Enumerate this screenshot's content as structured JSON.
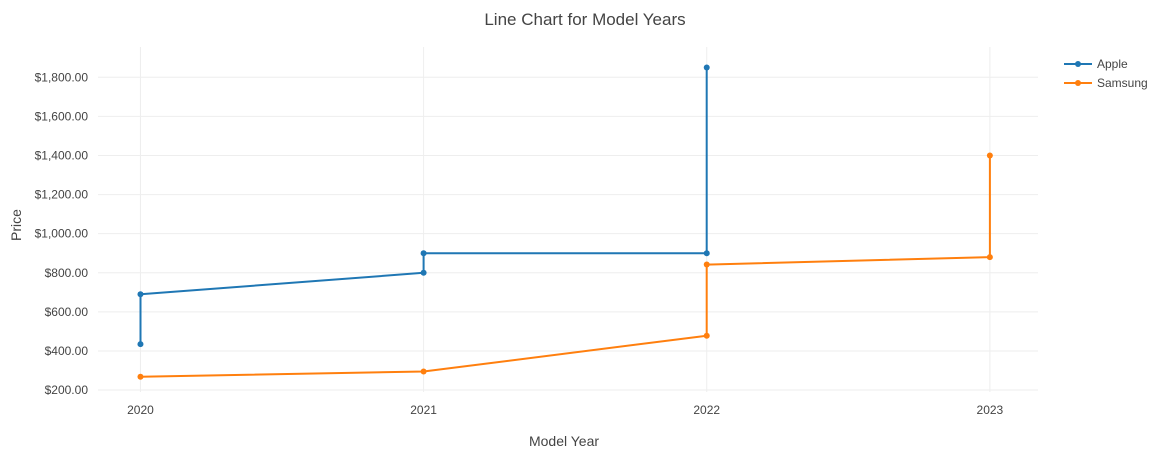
{
  "chart_data": {
    "type": "line",
    "title": "Line Chart for Model Years",
    "xlabel": "Model Year",
    "ylabel": "Price",
    "xlim": [
      2019.85,
      2023.17
    ],
    "ylim": [
      190,
      1955
    ],
    "grid": true,
    "legend_position": "top-right",
    "x_ticks": [
      {
        "value": 2020,
        "label": "2020"
      },
      {
        "value": 2021,
        "label": "2021"
      },
      {
        "value": 2022,
        "label": "2022"
      },
      {
        "value": 2023,
        "label": "2023"
      }
    ],
    "y_ticks": [
      {
        "value": 200,
        "label": "$200.00"
      },
      {
        "value": 400,
        "label": "$400.00"
      },
      {
        "value": 600,
        "label": "$600.00"
      },
      {
        "value": 800,
        "label": "$800.00"
      },
      {
        "value": 1000,
        "label": "$1,000.00"
      },
      {
        "value": 1200,
        "label": "$1,200.00"
      },
      {
        "value": 1400,
        "label": "$1,400.00"
      },
      {
        "value": 1600,
        "label": "$1,600.00"
      },
      {
        "value": 1800,
        "label": "$1,800.00"
      }
    ],
    "series": [
      {
        "name": "Apple",
        "color": "#1f77b4",
        "points": [
          {
            "x": 2020,
            "y": 435
          },
          {
            "x": 2020,
            "y": 690
          },
          {
            "x": 2021,
            "y": 800
          },
          {
            "x": 2021,
            "y": 900
          },
          {
            "x": 2022,
            "y": 900
          },
          {
            "x": 2022,
            "y": 1850
          }
        ]
      },
      {
        "name": "Samsung",
        "color": "#ff7f0e",
        "points": [
          {
            "x": 2020,
            "y": 268
          },
          {
            "x": 2021,
            "y": 295
          },
          {
            "x": 2022,
            "y": 478
          },
          {
            "x": 2022,
            "y": 842
          },
          {
            "x": 2023,
            "y": 880
          },
          {
            "x": 2023,
            "y": 1400
          }
        ]
      }
    ]
  }
}
